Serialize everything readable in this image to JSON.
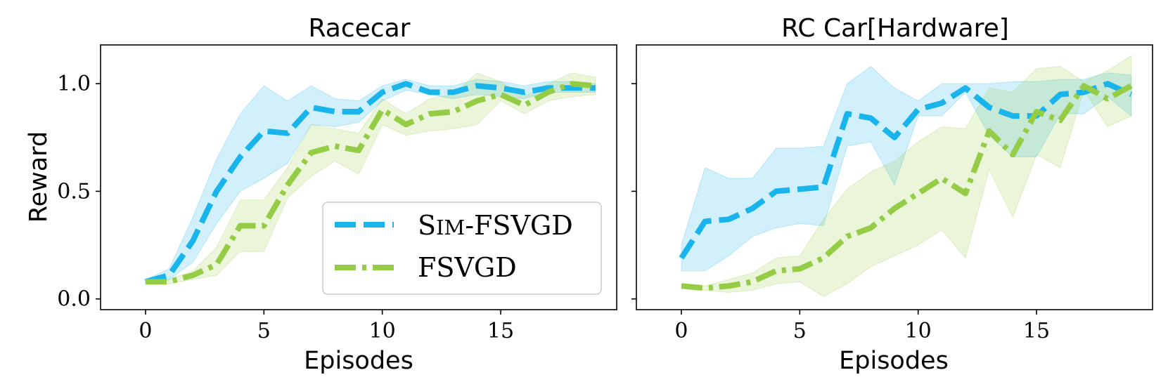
{
  "figure": {
    "ylabel": "Reward"
  },
  "legend": {
    "items": [
      {
        "label": "Sim-FSVGD",
        "color": "#1ab4ec"
      },
      {
        "label": "FSVGD",
        "color": "#94cc46"
      }
    ]
  },
  "chart_data": [
    {
      "type": "line",
      "title": "Racecar",
      "xlabel": "Episodes",
      "ylabel": "Reward",
      "xlim": [
        -1.9,
        19.9
      ],
      "ylim": [
        -0.05,
        1.18
      ],
      "xticks": [
        0,
        5,
        10,
        15
      ],
      "yticks": [
        0.0,
        0.5,
        1.0
      ],
      "ytick_labels": [
        "0.0",
        "0.5",
        "1.0"
      ],
      "grid": false,
      "x": [
        0,
        1,
        2,
        3,
        4,
        5,
        6,
        7,
        8,
        9,
        10,
        11,
        12,
        13,
        14,
        15,
        16,
        17,
        18,
        19
      ],
      "series": [
        {
          "name": "Sim-FSVGD",
          "color": "#1ab4ec",
          "style": "dashed",
          "values": [
            0.08,
            0.11,
            0.27,
            0.5,
            0.66,
            0.78,
            0.77,
            0.89,
            0.87,
            0.87,
            0.96,
            1.0,
            0.96,
            0.96,
            0.99,
            0.98,
            0.96,
            0.98,
            0.98,
            0.98
          ],
          "lower": [
            0.07,
            0.09,
            0.17,
            0.35,
            0.5,
            0.56,
            0.63,
            0.81,
            0.8,
            0.82,
            0.92,
            0.97,
            0.95,
            0.93,
            0.95,
            0.94,
            0.93,
            0.96,
            0.96,
            0.96
          ],
          "upper": [
            0.09,
            0.14,
            0.38,
            0.65,
            0.86,
            0.99,
            0.92,
            0.99,
            0.93,
            0.92,
            0.99,
            1.02,
            0.99,
            0.99,
            1.02,
            1.01,
            0.99,
            1.01,
            1.01,
            1.0
          ]
        },
        {
          "name": "FSVGD",
          "color": "#94cc46",
          "style": "dashdot",
          "values": [
            0.08,
            0.08,
            0.11,
            0.16,
            0.34,
            0.34,
            0.53,
            0.68,
            0.71,
            0.69,
            0.88,
            0.81,
            0.86,
            0.87,
            0.92,
            0.95,
            0.9,
            0.96,
            1.0,
            0.99
          ],
          "lower": [
            0.07,
            0.07,
            0.09,
            0.11,
            0.22,
            0.22,
            0.47,
            0.57,
            0.64,
            0.58,
            0.81,
            0.76,
            0.78,
            0.79,
            0.81,
            0.92,
            0.86,
            0.92,
            0.94,
            0.95
          ],
          "upper": [
            0.09,
            0.09,
            0.13,
            0.24,
            0.46,
            0.46,
            0.61,
            0.81,
            0.79,
            0.77,
            0.93,
            0.86,
            0.93,
            0.95,
            1.05,
            1.01,
            0.94,
            1.0,
            1.05,
            1.03
          ]
        }
      ]
    },
    {
      "type": "line",
      "title": "RC Car[Hardware]",
      "xlabel": "Episodes",
      "ylabel": "",
      "xlim": [
        -1.9,
        19.9
      ],
      "ylim": [
        -0.05,
        1.18
      ],
      "xticks": [
        0,
        5,
        10,
        15
      ],
      "yticks": [
        0.0,
        0.5,
        1.0
      ],
      "ytick_labels": [
        "",
        "",
        ""
      ],
      "grid": false,
      "x": [
        0,
        1,
        2,
        3,
        4,
        5,
        6,
        7,
        8,
        9,
        10,
        11,
        12,
        13,
        14,
        15,
        16,
        17,
        18,
        19
      ],
      "series": [
        {
          "name": "Sim-FSVGD",
          "color": "#1ab4ec",
          "style": "dashed",
          "values": [
            0.19,
            0.36,
            0.37,
            0.42,
            0.5,
            0.51,
            0.52,
            0.86,
            0.84,
            0.75,
            0.88,
            0.91,
            0.98,
            0.89,
            0.85,
            0.85,
            0.95,
            0.96,
            1.0,
            0.95
          ],
          "lower": [
            0.13,
            0.13,
            0.2,
            0.29,
            0.33,
            0.35,
            0.34,
            0.71,
            0.73,
            0.53,
            0.85,
            0.85,
            0.96,
            0.76,
            0.66,
            0.66,
            0.86,
            0.86,
            0.94,
            0.85
          ],
          "upper": [
            0.25,
            0.61,
            0.56,
            0.56,
            0.7,
            0.7,
            0.71,
            1.0,
            1.08,
            0.98,
            0.92,
            1.0,
            1.0,
            1.0,
            1.01,
            1.01,
            1.02,
            1.02,
            1.05,
            1.04
          ]
        },
        {
          "name": "FSVGD",
          "color": "#94cc46",
          "style": "dashdot",
          "values": [
            0.06,
            0.05,
            0.06,
            0.08,
            0.13,
            0.14,
            0.19,
            0.29,
            0.33,
            0.42,
            0.49,
            0.56,
            0.49,
            0.78,
            0.67,
            0.87,
            0.83,
            0.99,
            0.93,
            0.99
          ],
          "lower": [
            0.05,
            0.04,
            0.03,
            0.04,
            0.07,
            0.08,
            0.01,
            0.07,
            0.15,
            0.2,
            0.25,
            0.32,
            0.19,
            0.6,
            0.38,
            0.67,
            0.61,
            0.97,
            0.8,
            0.85
          ],
          "upper": [
            0.07,
            0.06,
            0.09,
            0.12,
            0.19,
            0.2,
            0.37,
            0.51,
            0.59,
            0.64,
            0.73,
            0.8,
            0.79,
            0.98,
            0.96,
            1.07,
            1.08,
            1.01,
            1.06,
            1.13
          ]
        }
      ]
    }
  ]
}
